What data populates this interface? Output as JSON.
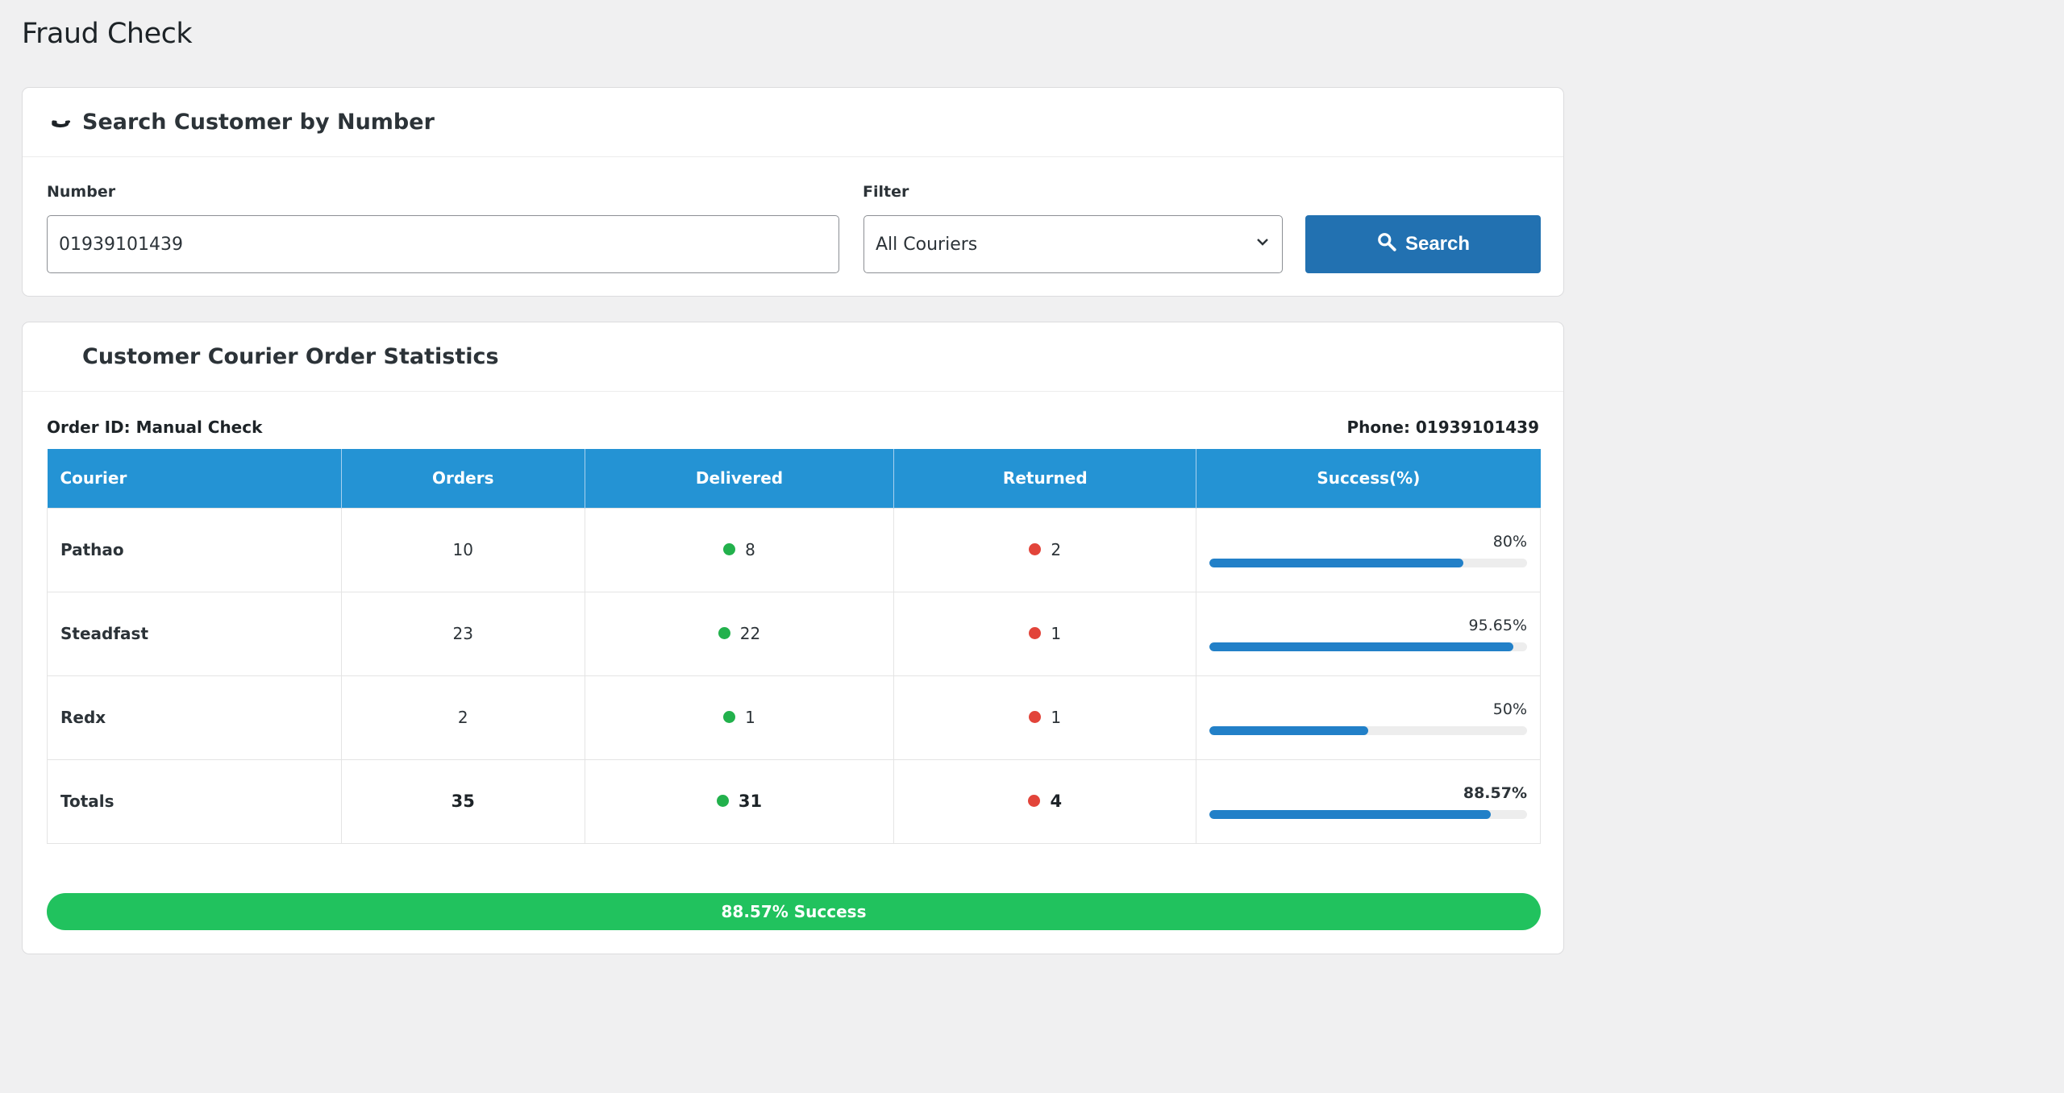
{
  "page": {
    "title": "Fraud Check"
  },
  "search_card": {
    "title": "Search Customer by Number",
    "icon": "phone-icon",
    "number_label": "Number",
    "number_value": "01939101439",
    "filter_label": "Filter",
    "filter_value": "All Couriers",
    "search_label": "Search"
  },
  "stats_card": {
    "title": "Customer Courier Order Statistics",
    "order_id": "Order ID: Manual Check",
    "phone": "Phone: 01939101439",
    "columns": [
      "Courier",
      "Orders",
      "Delivered",
      "Returned",
      "Success(%)"
    ],
    "rows": [
      {
        "courier": "Pathao",
        "orders": "10",
        "delivered": "8",
        "returned": "2",
        "success": "80%",
        "success_value": 80
      },
      {
        "courier": "Steadfast",
        "orders": "23",
        "delivered": "22",
        "returned": "1",
        "success": "95.65%",
        "success_value": 95.65
      },
      {
        "courier": "Redx",
        "orders": "2",
        "delivered": "1",
        "returned": "1",
        "success": "50%",
        "success_value": 50
      },
      {
        "courier": "Totals",
        "orders": "35",
        "delivered": "31",
        "returned": "4",
        "success": "88.57%",
        "success_value": 88.57
      }
    ],
    "overall": "88.57% Success"
  },
  "colors": {
    "primary": "#2271b1",
    "table_header": "#2493d4",
    "delivered": "#22b14c",
    "returned": "#e2443a",
    "success_bar": "#21c25e"
  }
}
